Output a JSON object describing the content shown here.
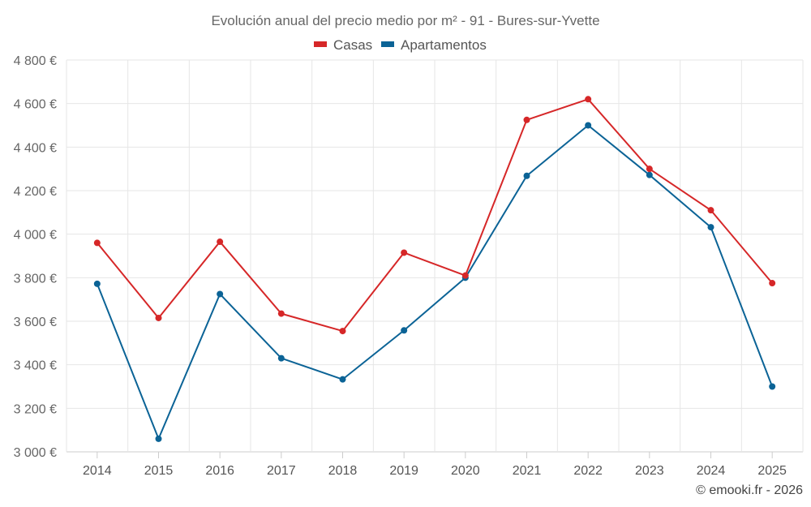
{
  "chart_data": {
    "type": "line",
    "title": "Evolución anual del precio medio por m² - 91 - Bures-sur-Yvette",
    "categories": [
      "2014",
      "2015",
      "2016",
      "2017",
      "2018",
      "2019",
      "2020",
      "2021",
      "2022",
      "2023",
      "2024",
      "2025"
    ],
    "series": [
      {
        "name": "Casas",
        "color": "#d62728",
        "values": [
          3960,
          3615,
          3965,
          3635,
          3555,
          3915,
          3810,
          4525,
          4620,
          4300,
          4110,
          3775
        ]
      },
      {
        "name": "Apartamentos",
        "color": "#0b6396",
        "values": [
          3772,
          3060,
          3725,
          3430,
          3333,
          3558,
          3800,
          4268,
          4500,
          4272,
          4032,
          3300
        ]
      }
    ],
    "ylim": [
      3000,
      4800
    ],
    "yticks": [
      3000,
      3200,
      3400,
      3600,
      3800,
      4000,
      4200,
      4400,
      4600,
      4800
    ],
    "ytick_labels": [
      "3 000 €",
      "3 200 €",
      "3 400 €",
      "3 600 €",
      "3 800 €",
      "4 000 €",
      "4 200 €",
      "4 400 €",
      "4 600 €",
      "4 800 €"
    ],
    "xlabel": "",
    "ylabel": "",
    "grid": true,
    "legend_position": "top-center"
  },
  "credit": "© emooki.fr - 2026"
}
